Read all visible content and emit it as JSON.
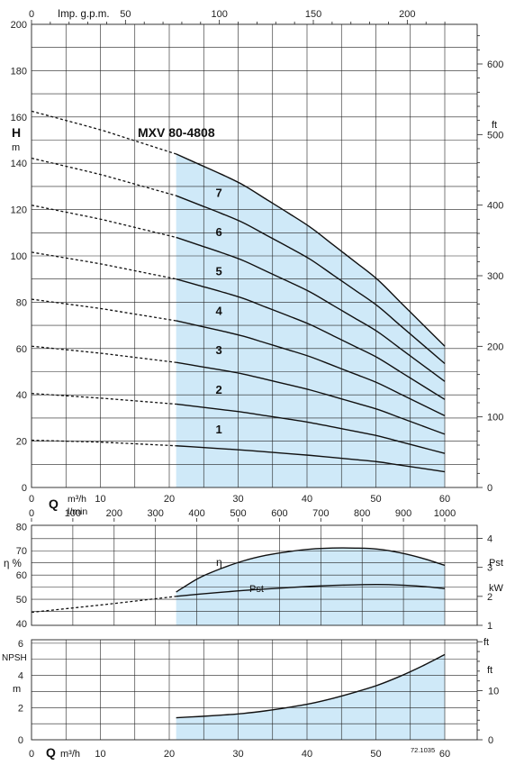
{
  "chart_data": [
    {
      "type": "line",
      "title": "MXV 80-4808",
      "ylabel": "H",
      "ylabel_unit": "m",
      "xlabel": "Q",
      "xunit_primary": "m³/h",
      "xunit_secondary": "l/min",
      "top_axis_label": "Imp. g.p.m.",
      "right_unit": "ft",
      "ylim": [
        0,
        200
      ],
      "xlim": [
        0,
        62
      ],
      "x_ticks_m3h": [
        "0",
        "10",
        "20",
        "30",
        "40",
        "50",
        "60"
      ],
      "x_ticks_lmin": [
        "0",
        "100",
        "200",
        "300",
        "400",
        "500",
        "600",
        "700",
        "800",
        "900",
        "1000"
      ],
      "x_ticks_gpm": [
        "0",
        "50",
        "100",
        "150",
        "200"
      ],
      "y_ticks": [
        "0",
        "20",
        "40",
        "60",
        "80",
        "100",
        "120",
        "140",
        "160",
        "180",
        "200"
      ],
      "y_ticks_ft": [
        "0",
        "100",
        "200",
        "300",
        "400",
        "500",
        "600"
      ],
      "operating_range_m3h": [
        21,
        60
      ],
      "curve_labels": [
        "1",
        "2",
        "3",
        "4",
        "5",
        "6",
        "7"
      ],
      "series": [
        {
          "name": "1",
          "x": [
            0,
            10,
            21,
            30,
            40,
            50,
            60
          ],
          "y": [
            20.4,
            19.6,
            18.0,
            16.3,
            14.0,
            11.2,
            6.8
          ]
        },
        {
          "name": "2",
          "x": [
            0,
            10,
            21,
            30,
            40,
            50,
            60
          ],
          "y": [
            40.6,
            38.6,
            36.0,
            32.8,
            28.3,
            22.5,
            14.7
          ]
        },
        {
          "name": "3",
          "x": [
            0,
            10,
            21,
            30,
            40,
            50,
            60
          ],
          "y": [
            61.0,
            58.0,
            54.0,
            49.5,
            42.5,
            34.0,
            23.0
          ]
        },
        {
          "name": "4",
          "x": [
            0,
            10,
            21,
            30,
            40,
            50,
            60
          ],
          "y": [
            81.3,
            77.3,
            72.0,
            66.0,
            57.0,
            45.5,
            31.0
          ]
        },
        {
          "name": "5",
          "x": [
            0,
            10,
            21,
            30,
            40,
            50,
            60
          ],
          "y": [
            101.6,
            96.6,
            90.0,
            82.5,
            71.0,
            56.5,
            38.0
          ]
        },
        {
          "name": "6",
          "x": [
            0,
            10,
            21,
            30,
            40,
            50,
            60
          ],
          "y": [
            121.9,
            115.9,
            108.0,
            99.0,
            85.2,
            67.8,
            45.8
          ]
        },
        {
          "name": "7",
          "x": [
            0,
            10,
            21,
            30,
            40,
            50,
            60
          ],
          "y": [
            142.2,
            135.2,
            126.0,
            115.5,
            99.5,
            79.0,
            53.5
          ]
        },
        {
          "name": "",
          "x": [
            0,
            10,
            21,
            30,
            40,
            50,
            60
          ],
          "y": [
            162.5,
            154.5,
            144.0,
            132.0,
            113.5,
            90.5,
            61.0
          ]
        }
      ]
    },
    {
      "type": "line",
      "ylabel": "η %",
      "right_label": "Pst",
      "right_unit": "kW",
      "ylim": [
        40,
        80
      ],
      "y_ticks": [
        "40",
        "50",
        "60",
        "70",
        "80"
      ],
      "y2lim": [
        1,
        4.4
      ],
      "y2_ticks": [
        "1",
        "2",
        "3",
        "4"
      ],
      "series": [
        {
          "name": "η",
          "axis": "left",
          "x": [
            21,
            25,
            30,
            35,
            40,
            45,
            50,
            55,
            60
          ],
          "y": [
            53.0,
            60.0,
            65.3,
            68.8,
            70.6,
            71.3,
            70.8,
            68.5,
            64.0
          ]
        },
        {
          "name": "Pst",
          "axis": "right",
          "x": [
            0,
            10,
            21,
            25,
            30,
            35,
            40,
            45,
            50,
            55,
            60
          ],
          "y": [
            1.45,
            1.7,
            2.0,
            2.09,
            2.19,
            2.27,
            2.34,
            2.39,
            2.41,
            2.38,
            2.27
          ]
        }
      ]
    },
    {
      "type": "line",
      "ylabel": "NPSH",
      "ylabel_unit": "m",
      "xlabel": "Q",
      "xunit": "m³/h",
      "right_unit": "ft",
      "ylim": [
        0,
        6
      ],
      "y_ticks": [
        "0",
        "2",
        "4",
        "6"
      ],
      "y_ticks_ft": [
        "0",
        "10"
      ],
      "x_ticks": [
        "0",
        "10",
        "20",
        "30",
        "40",
        "50",
        "60"
      ],
      "code": "72.1035",
      "series": [
        {
          "name": "NPSH",
          "x": [
            21,
            25,
            30,
            35,
            40,
            45,
            50,
            55,
            60
          ],
          "y": [
            1.37,
            1.46,
            1.6,
            1.85,
            2.2,
            2.7,
            3.35,
            4.2,
            5.3
          ]
        }
      ]
    }
  ]
}
